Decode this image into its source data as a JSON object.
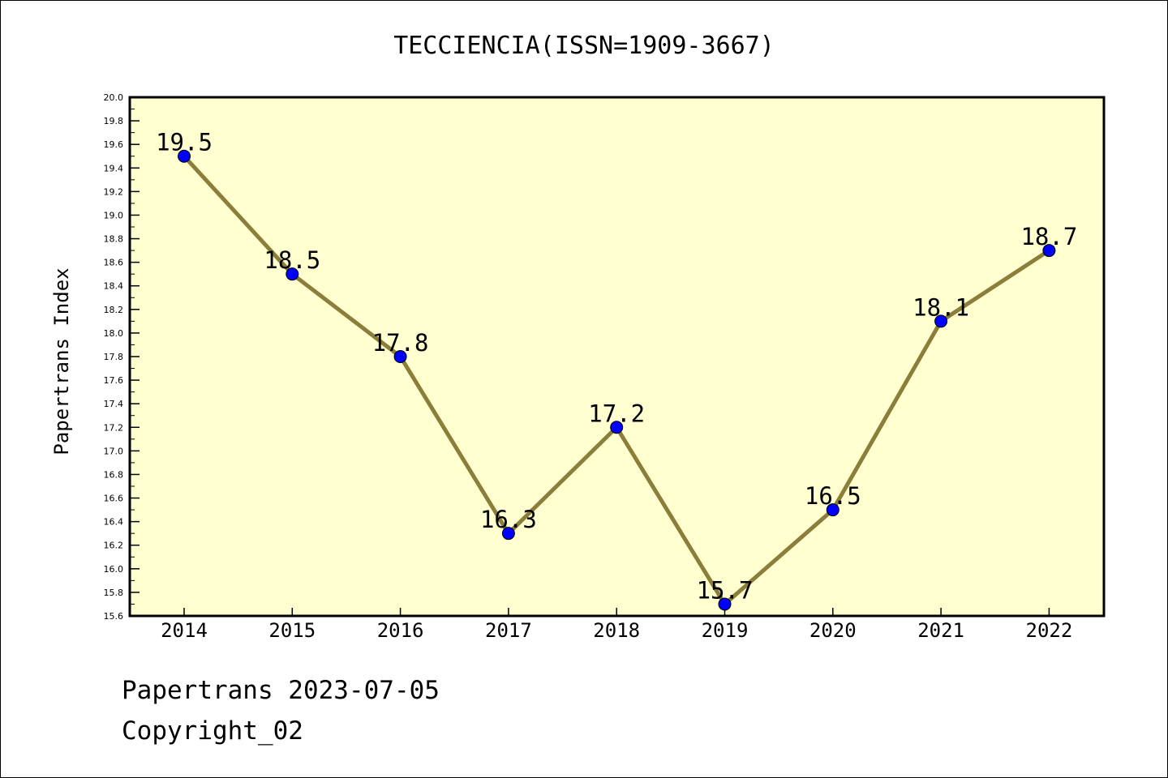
{
  "chart_data": {
    "type": "line",
    "title": "TECCIENCIA(ISSN=1909-3667)",
    "ylabel": "Papertrans Index",
    "xlabel": "",
    "categories": [
      "2014",
      "2015",
      "2016",
      "2017",
      "2018",
      "2019",
      "2020",
      "2021",
      "2022"
    ],
    "series": [
      {
        "values": [
          19.5,
          18.5,
          17.8,
          16.3,
          17.2,
          15.7,
          16.5,
          18.1,
          18.7
        ]
      }
    ],
    "data_labels": [
      "19.5",
      "18.5",
      "17.8",
      "16.3",
      "17.2",
      "15.7",
      "16.5",
      "18.1",
      "18.7"
    ],
    "ylim": [
      15.6,
      20.0
    ],
    "yticks": [
      "15.6",
      "15.8",
      "16.0",
      "16.2",
      "16.4",
      "16.6",
      "16.8",
      "17.0",
      "17.2",
      "17.4",
      "17.6",
      "17.8",
      "18.0",
      "18.2",
      "18.4",
      "18.6",
      "18.8",
      "19.0",
      "19.2",
      "19.4",
      "19.6",
      "19.8",
      "20.0"
    ],
    "grid": false,
    "colors": {
      "plot_bg": "#ffffd0",
      "line": "#8b7d3a",
      "marker": "#0000ff"
    }
  },
  "footer": {
    "line1": "Papertrans 2023-07-05",
    "line2": "Copyright_02"
  }
}
